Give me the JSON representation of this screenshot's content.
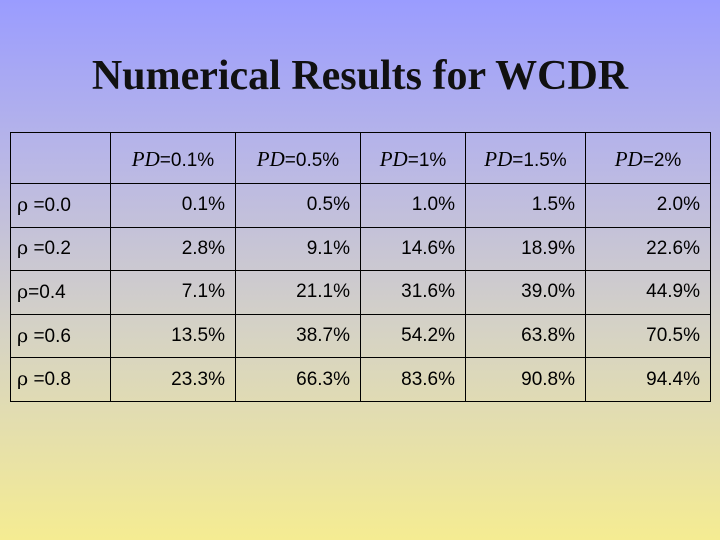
{
  "title": "Numerical Results for WCDR",
  "table": {
    "columns": [
      {
        "pd": "PD",
        "val": "=0.1%"
      },
      {
        "pd": "PD",
        "val": "=0.5%"
      },
      {
        "pd": "PD",
        "val": "=1%"
      },
      {
        "pd": "PD",
        "val": "=1.5%"
      },
      {
        "pd": "PD",
        "val": "=2%"
      }
    ],
    "rows": [
      {
        "rho": "ρ",
        "label": " =0.0",
        "cells": [
          "0.1%",
          "0.5%",
          "1.0%",
          "1.5%",
          "2.0%"
        ]
      },
      {
        "rho": "ρ",
        "label": " =0.2",
        "cells": [
          "2.8%",
          "9.1%",
          "14.6%",
          "18.9%",
          "22.6%"
        ]
      },
      {
        "rho": "ρ",
        "label": "=0.4",
        "cells": [
          "7.1%",
          "21.1%",
          "31.6%",
          "39.0%",
          "44.9%"
        ]
      },
      {
        "rho": "ρ",
        "label": " =0.6",
        "cells": [
          "13.5%",
          "38.7%",
          "54.2%",
          "63.8%",
          "70.5%"
        ]
      },
      {
        "rho": "ρ",
        "label": " =0.8",
        "cells": [
          "23.3%",
          "66.3%",
          "83.6%",
          "90.8%",
          "94.4%"
        ]
      }
    ]
  }
}
